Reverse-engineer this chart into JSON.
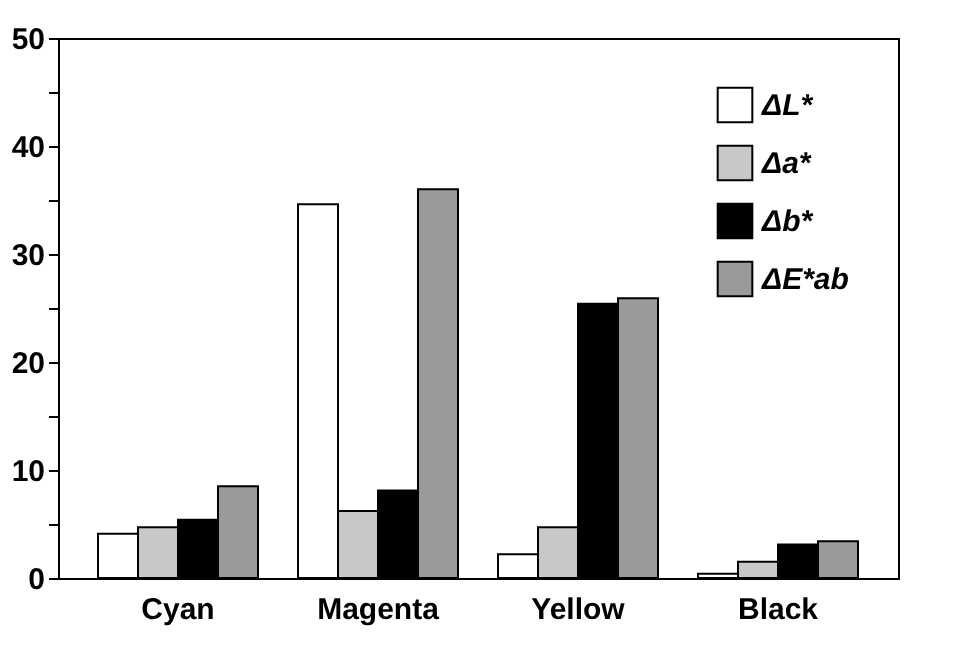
{
  "chart_data": {
    "type": "bar",
    "categories": [
      "Cyan",
      "Magenta",
      "Yellow",
      "Black"
    ],
    "series": [
      {
        "name": "ΔL*",
        "color": "#ffffff",
        "values": [
          4.1,
          34.6,
          2.2,
          0.4
        ]
      },
      {
        "name": "Δa*",
        "color": "#c8c8c8",
        "values": [
          4.7,
          6.2,
          4.7,
          1.5
        ]
      },
      {
        "name": "Δb*",
        "color": "#000000",
        "values": [
          5.4,
          8.1,
          25.4,
          3.1
        ]
      },
      {
        "name": "ΔE*ab",
        "color": "#9a9a9a",
        "values": [
          8.5,
          36.0,
          25.9,
          3.4
        ]
      }
    ],
    "ylim": [
      0,
      50
    ],
    "yticks": [
      0,
      {
        "value": 5,
        "label": null
      },
      10,
      {
        "value": 15,
        "label": null
      },
      20,
      {
        "value": 25,
        "label": null
      },
      30,
      {
        "value": 35,
        "label": null
      },
      40,
      {
        "value": 45,
        "label": null
      },
      50
    ],
    "grid": false,
    "legend": "top right"
  }
}
